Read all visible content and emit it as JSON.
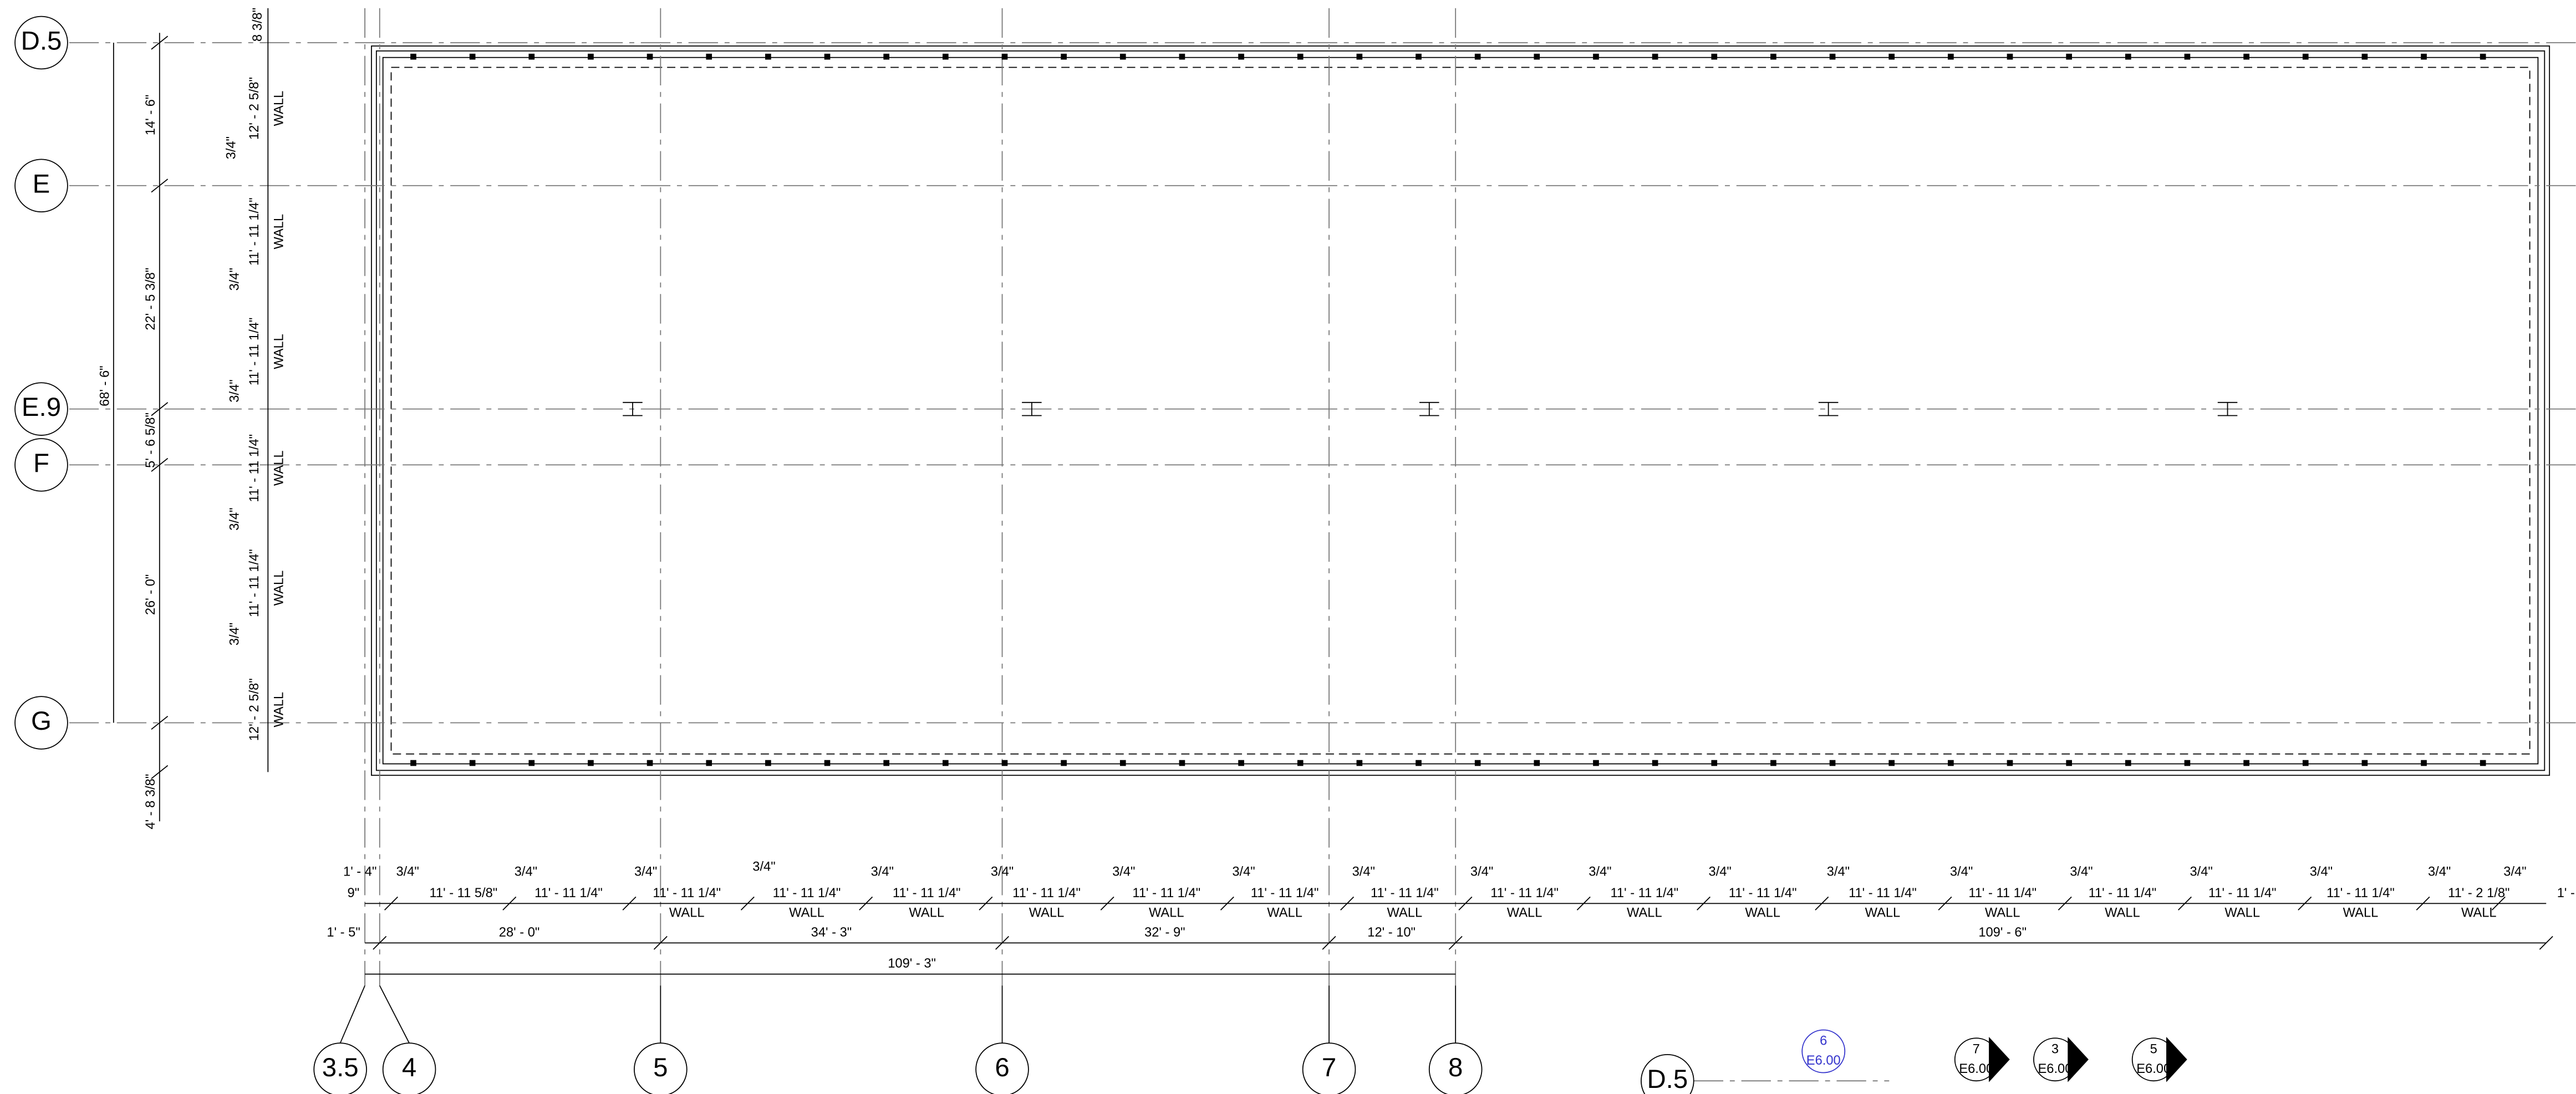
{
  "grid_left": [
    "D.5",
    "E",
    "E.9",
    "F",
    "G"
  ],
  "grid_bottom": [
    "3.5",
    "4",
    "5",
    "6",
    "7",
    "8",
    "D.5"
  ],
  "section_tags": [
    {
      "number": "6",
      "sheet": "E6.00"
    },
    {
      "number": "7",
      "sheet": "E6.00"
    },
    {
      "number": "3",
      "sheet": "E6.00"
    },
    {
      "number": "5",
      "sheet": "E6.00"
    }
  ],
  "vertical_dims": [
    "8 3/8\"",
    "68' - 6\"",
    "14' - 6\"",
    "22' - 5 3/8\"",
    "5' - 6 5/8\"",
    "26' - 0\"",
    "4' - 8 3/8\"",
    "12' - 2 5/8\"",
    "WALL",
    "3/4\"",
    "11' - 11 1/4\"",
    "WALL",
    "3/4\"",
    "11' - 11 1/4\"",
    "WALL",
    "3/4\"",
    "11' - 11 1/4\"",
    "WALL",
    "3/4\"",
    "11' - 11 1/4\"",
    "WALL",
    "3/4\"",
    "12' - 2 5/8\"",
    "WALL"
  ],
  "bottom_dims": {
    "gaps": [
      "3/4\"",
      "3/4\"",
      "3/4\"",
      "3/4\"",
      "3/4\"",
      "3/4\"",
      "3/4\"",
      "3/4\"",
      "3/4\"",
      "3/4\"",
      "3/4\"",
      "3/4\"",
      "3/4\"",
      "3/4\"",
      "3/4\"",
      "3/4\"",
      "3/4\"",
      "3/4\"",
      "3/4\""
    ],
    "walls": [
      "11' - 11 5/8\"",
      "11' - 11 1/4\"",
      "11' - 11 1/4\"",
      "11' - 11 1/4\"",
      "11' - 11 1/4\"",
      "11' - 11 1/4\"",
      "11' - 11 1/4\"",
      "11' - 11 1/4\"",
      "11' - 11 1/4\"",
      "11' - 11 1/4\"",
      "11' - 11 1/4\"",
      "11' - 11 1/4\"",
      "11' - 11 1/4\"",
      "11' - 11 1/4\"",
      "11' - 11 1/4\"",
      "11' - 11 1/4\"",
      "11' - 11 1/4\"",
      "11' - 2 1/8\""
    ],
    "wall_tags": [
      "WALL",
      "WALL",
      "WALL",
      "WALL",
      "WALL",
      "WALL",
      "WALL",
      "WALL",
      "WALL",
      "WALL",
      "WALL",
      "WALL",
      "WALL",
      "WALL",
      "WALL",
      "WALL"
    ],
    "bays": [
      "28' - 0\"",
      "34' - 3\"",
      "32' - 9\"",
      "12' - 10\"",
      "109' - 6\""
    ],
    "overall": "109' - 3\"",
    "left": [
      "1' - 4\"",
      "9\"",
      "1' - 5\""
    ],
    "right": "1' -"
  }
}
